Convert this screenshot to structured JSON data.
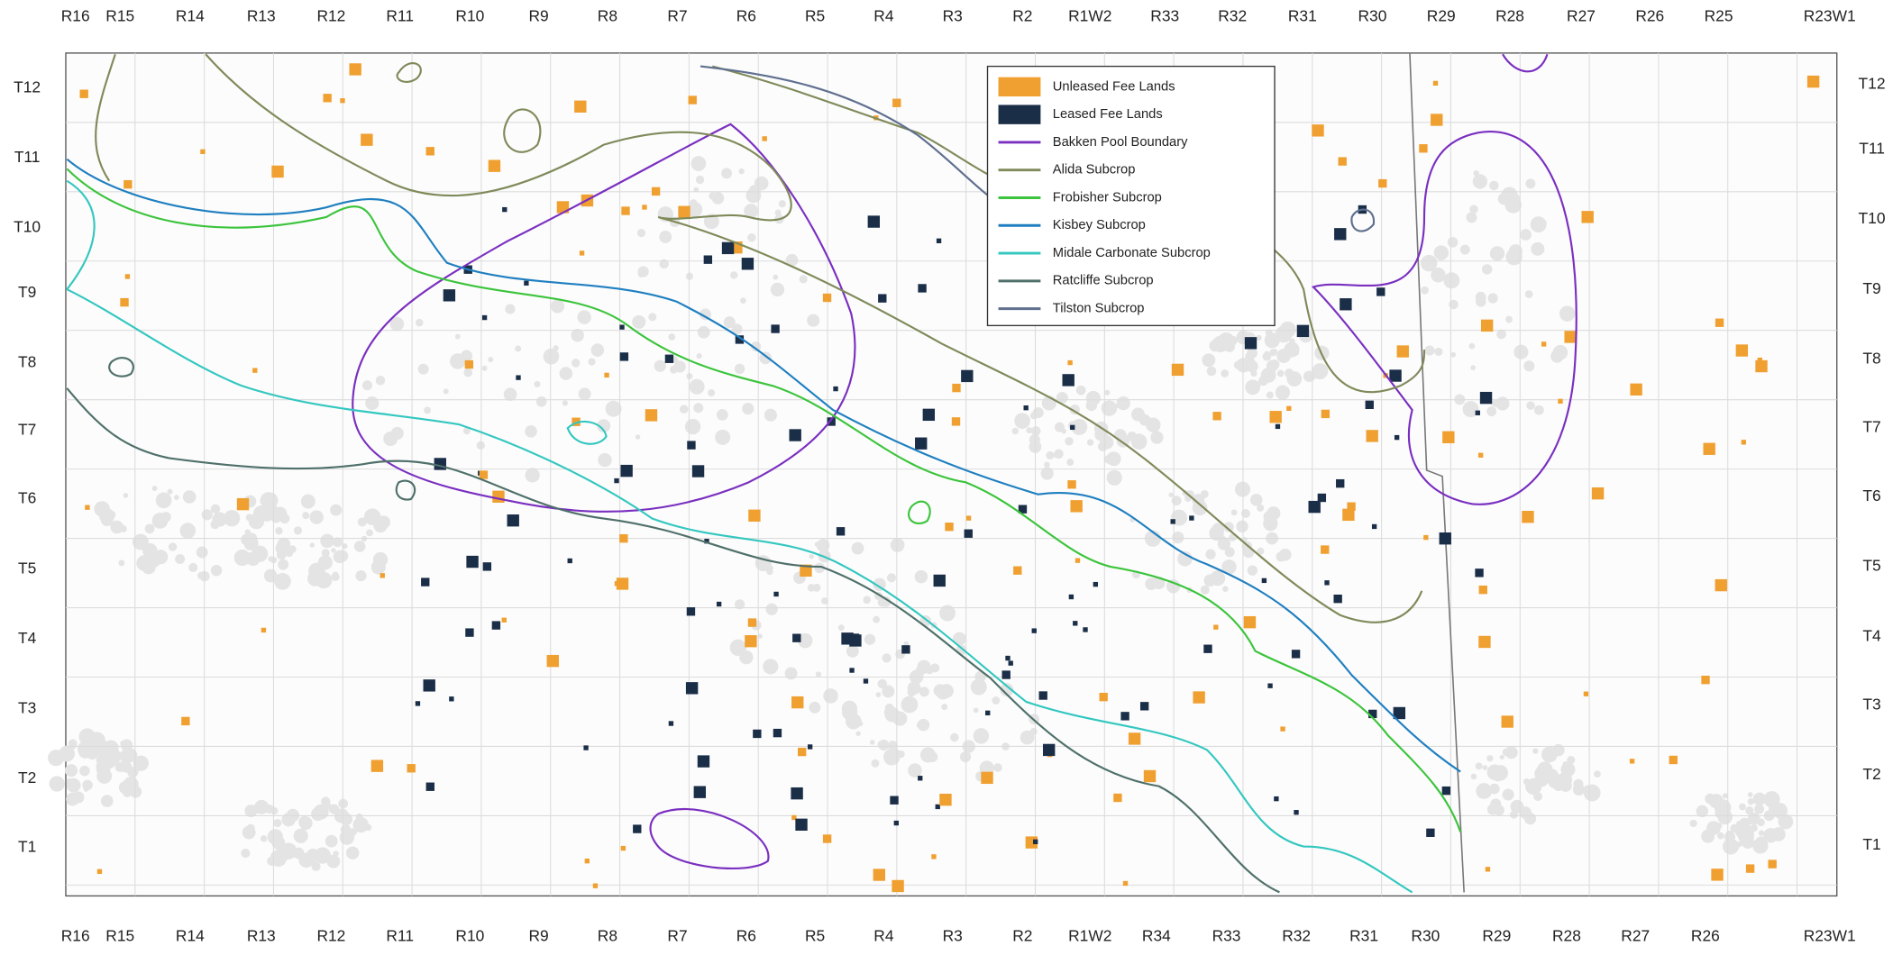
{
  "top_ranges": [
    "R16",
    "R15",
    "R14",
    "R13",
    "R12",
    "R11",
    "R10",
    "R9",
    "R8",
    "R7",
    "R6",
    "R5",
    "R4",
    "R3",
    "R2",
    "R1W2",
    "R33",
    "R32",
    "R31",
    "R30",
    "R29",
    "R28",
    "R27",
    "R26",
    "R25",
    "R23W1"
  ],
  "bottom_ranges": [
    "R16",
    "R15",
    "R14",
    "R13",
    "R12",
    "R11",
    "R10",
    "R9",
    "R8",
    "R7",
    "R6",
    "R5",
    "R4",
    "R3",
    "R2",
    "R1W2",
    "R34",
    "R33",
    "R32",
    "R31",
    "R30",
    "R29",
    "R28",
    "R27",
    "R26",
    "R23W1"
  ],
  "left_townships": [
    "T12",
    "T11",
    "T10",
    "T9",
    "T8",
    "T7",
    "T6",
    "T5",
    "T4",
    "T3",
    "T2",
    "T1"
  ],
  "right_townships": [
    "T12",
    "T11",
    "T10",
    "T9",
    "T8",
    "T7",
    "T6",
    "T5",
    "T4",
    "T3",
    "T2",
    "T1"
  ],
  "legend": [
    {
      "label": "Unleased Fee Lands",
      "style": "patch",
      "color": "#f0a030"
    },
    {
      "label": "Leased Fee Lands",
      "style": "patch",
      "color": "#1b2e48"
    },
    {
      "label": "Bakken Pool Boundary",
      "style": "line",
      "color": "#7a2fc0"
    },
    {
      "label": "Alida Subcrop",
      "style": "line",
      "color": "#7f8a5a"
    },
    {
      "label": "Frobisher Subcrop",
      "style": "line",
      "color": "#3cc43c"
    },
    {
      "label": "Kisbey Subcrop",
      "style": "line",
      "color": "#1f7fc0"
    },
    {
      "label": "Midale Carbonate Subcrop",
      "style": "line",
      "color": "#33c7c0"
    },
    {
      "label": "Ratcliffe Subcrop",
      "style": "line",
      "color": "#4f706a"
    },
    {
      "label": "Tilston Subcrop",
      "style": "line",
      "color": "#5f6f8f"
    }
  ]
}
